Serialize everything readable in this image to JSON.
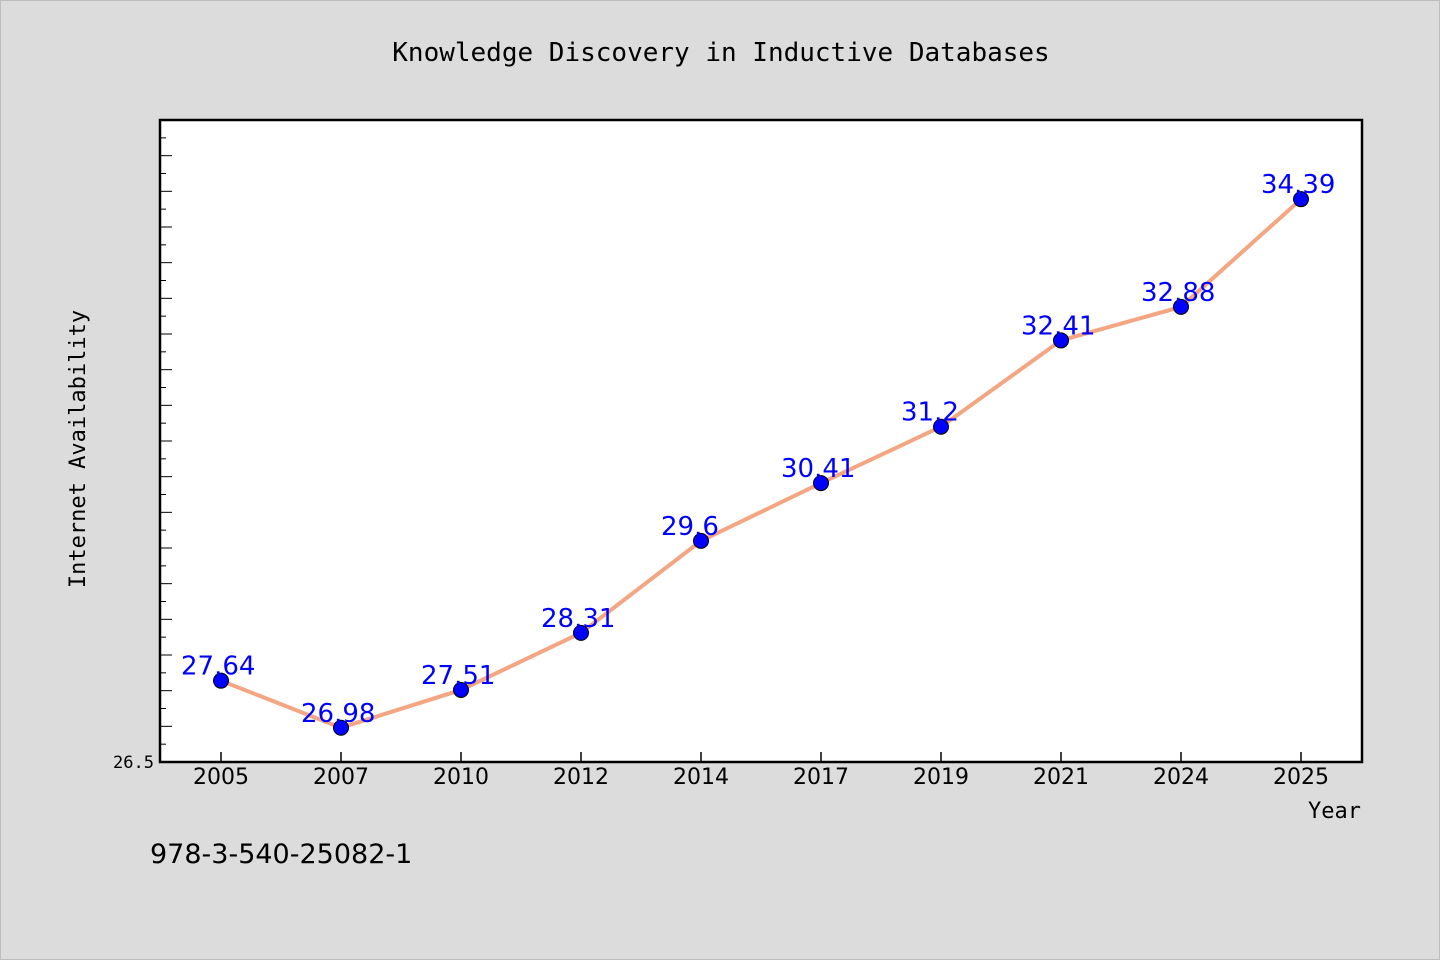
{
  "chart_data": {
    "type": "line",
    "title": "Knowledge Discovery in Inductive Databases",
    "xlabel": "Year",
    "ylabel": "Internet Availability",
    "categories": [
      "2005",
      "2007",
      "2010",
      "2012",
      "2014",
      "2017",
      "2019",
      "2021",
      "2024",
      "2025"
    ],
    "series": [
      {
        "values": [
          27.64,
          26.98,
          27.51,
          28.31,
          29.6,
          30.41,
          31.2,
          32.41,
          32.88,
          34.39
        ],
        "data_labels": [
          "27.64",
          "26.98",
          "27.51",
          "28.31",
          "29.6",
          "30.41",
          "31.2",
          "32.41",
          "32.88",
          "34.39"
        ]
      }
    ],
    "ylim": [
      26.5,
      35.5
    ],
    "y_tick_labels": [
      "26.5"
    ],
    "grid": false,
    "legend": "none",
    "colors": {
      "line": "#f4a582",
      "marker": "#0000ff",
      "data_label": "#0000ff",
      "plot_background": "#ffffff",
      "figure_background": "#dcdcdc"
    }
  },
  "footer": {
    "isbn": "978-3-540-25082-1"
  }
}
